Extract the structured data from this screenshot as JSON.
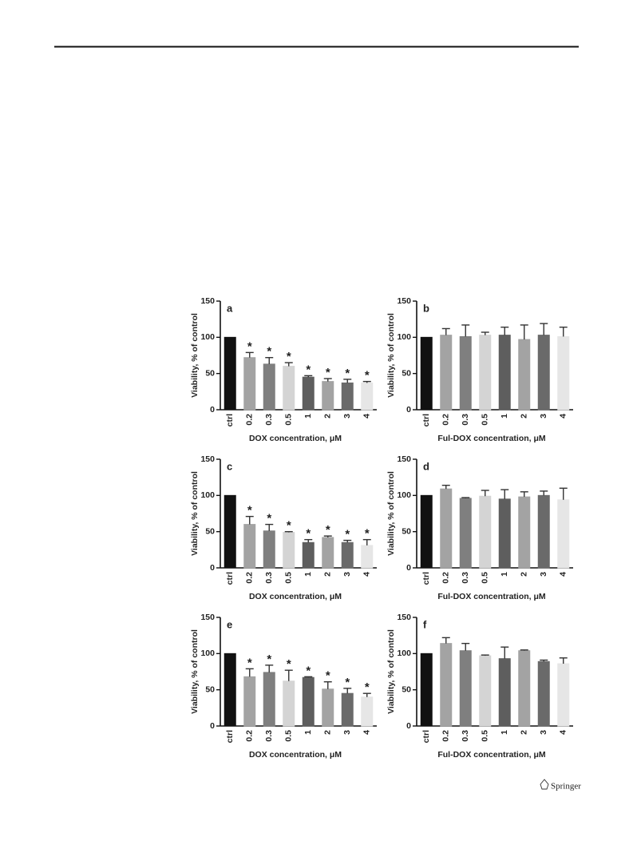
{
  "publisher": "Springer",
  "chart_data": [
    {
      "type": "bar",
      "panel": "a",
      "ylabel": "Viability, % of control",
      "xlabel": "DOX concentration, μM",
      "categories": [
        "ctrl",
        "0.2",
        "0.3",
        "0.5",
        "1",
        "2",
        "3",
        "4"
      ],
      "values": [
        100,
        72,
        63,
        60,
        45,
        39,
        37,
        37
      ],
      "errors": [
        0,
        7,
        9,
        5,
        2,
        4,
        5,
        2
      ],
      "markers": [
        null,
        "*",
        "*",
        "*",
        "*",
        "*",
        "*",
        "*"
      ],
      "colors": [
        "#111111",
        "#a3a3a3",
        "#7f7f7f",
        "#d4d4d4",
        "#5e5e5e",
        "#a3a3a3",
        "#6a6a6a",
        "#e6e6e6"
      ],
      "ylim": [
        0,
        150
      ],
      "yticks": [
        0,
        50,
        100,
        150
      ]
    },
    {
      "type": "bar",
      "panel": "b",
      "ylabel": "Viability, % of control",
      "xlabel": "Ful-DOX concentration, μM",
      "categories": [
        "ctrl",
        "0.2",
        "0.3",
        "0.5",
        "1",
        "2",
        "3",
        "4"
      ],
      "values": [
        100,
        103,
        101,
        103,
        103,
        97,
        103,
        101
      ],
      "errors": [
        0,
        9,
        16,
        4,
        11,
        20,
        16,
        13
      ],
      "markers": [
        null,
        null,
        null,
        null,
        null,
        null,
        null,
        null
      ],
      "colors": [
        "#111111",
        "#a3a3a3",
        "#7f7f7f",
        "#d4d4d4",
        "#5e5e5e",
        "#a3a3a3",
        "#6a6a6a",
        "#e6e6e6"
      ],
      "ylim": [
        0,
        150
      ],
      "yticks": [
        0,
        50,
        100,
        150
      ]
    },
    {
      "type": "bar",
      "panel": "c",
      "ylabel": "Viability, % of control",
      "xlabel": "DOX concentration, μM",
      "categories": [
        "ctrl",
        "0.2",
        "0.3",
        "0.5",
        "1",
        "2",
        "3",
        "4"
      ],
      "values": [
        100,
        60,
        51,
        49,
        35,
        42,
        35,
        31
      ],
      "errors": [
        0,
        11,
        9,
        1,
        4,
        2,
        3,
        8
      ],
      "markers": [
        null,
        "*",
        "*",
        "*",
        "*",
        "*",
        "*",
        "*"
      ],
      "colors": [
        "#111111",
        "#a3a3a3",
        "#7f7f7f",
        "#d4d4d4",
        "#5e5e5e",
        "#a3a3a3",
        "#6a6a6a",
        "#e6e6e6"
      ],
      "ylim": [
        0,
        150
      ],
      "yticks": [
        0,
        50,
        100,
        150
      ]
    },
    {
      "type": "bar",
      "panel": "d",
      "ylabel": "Viability, % of control",
      "xlabel": "Ful-DOX concentration, μM",
      "categories": [
        "ctrl",
        "0.2",
        "0.3",
        "0.5",
        "1",
        "2",
        "3",
        "4"
      ],
      "values": [
        100,
        109,
        96,
        99,
        95,
        98,
        100,
        94
      ],
      "errors": [
        0,
        5,
        1,
        8,
        13,
        7,
        6,
        16
      ],
      "markers": [
        null,
        null,
        null,
        null,
        null,
        null,
        null,
        null
      ],
      "colors": [
        "#111111",
        "#a3a3a3",
        "#7f7f7f",
        "#d4d4d4",
        "#5e5e5e",
        "#a3a3a3",
        "#6a6a6a",
        "#e6e6e6"
      ],
      "ylim": [
        0,
        150
      ],
      "yticks": [
        0,
        50,
        100,
        150
      ]
    },
    {
      "type": "bar",
      "panel": "e",
      "ylabel": "Viability, % of control",
      "xlabel": "DOX concentration, μM",
      "categories": [
        "ctrl",
        "0.2",
        "0.3",
        "0.5",
        "1",
        "2",
        "3",
        "4"
      ],
      "values": [
        100,
        68,
        74,
        62,
        67,
        51,
        45,
        40
      ],
      "errors": [
        0,
        11,
        10,
        15,
        1,
        10,
        7,
        5
      ],
      "markers": [
        null,
        "*",
        "*",
        "*",
        "*",
        "*",
        "*",
        "*"
      ],
      "colors": [
        "#111111",
        "#a3a3a3",
        "#7f7f7f",
        "#d4d4d4",
        "#5e5e5e",
        "#a3a3a3",
        "#6a6a6a",
        "#e6e6e6"
      ],
      "ylim": [
        0,
        150
      ],
      "yticks": [
        0,
        50,
        100,
        150
      ]
    },
    {
      "type": "bar",
      "panel": "f",
      "ylabel": "Viability, % of control",
      "xlabel": "Ful-DOX concentration, μM",
      "categories": [
        "ctrl",
        "0.2",
        "0.3",
        "0.5",
        "1",
        "2",
        "3",
        "4"
      ],
      "values": [
        100,
        114,
        104,
        97,
        93,
        104,
        89,
        86
      ],
      "errors": [
        0,
        8,
        10,
        1,
        16,
        1,
        2,
        8
      ],
      "markers": [
        null,
        null,
        null,
        null,
        null,
        null,
        null,
        null
      ],
      "colors": [
        "#111111",
        "#a3a3a3",
        "#7f7f7f",
        "#d4d4d4",
        "#5e5e5e",
        "#a3a3a3",
        "#6a6a6a",
        "#e6e6e6"
      ],
      "ylim": [
        0,
        150
      ],
      "yticks": [
        0,
        50,
        100,
        150
      ]
    }
  ]
}
